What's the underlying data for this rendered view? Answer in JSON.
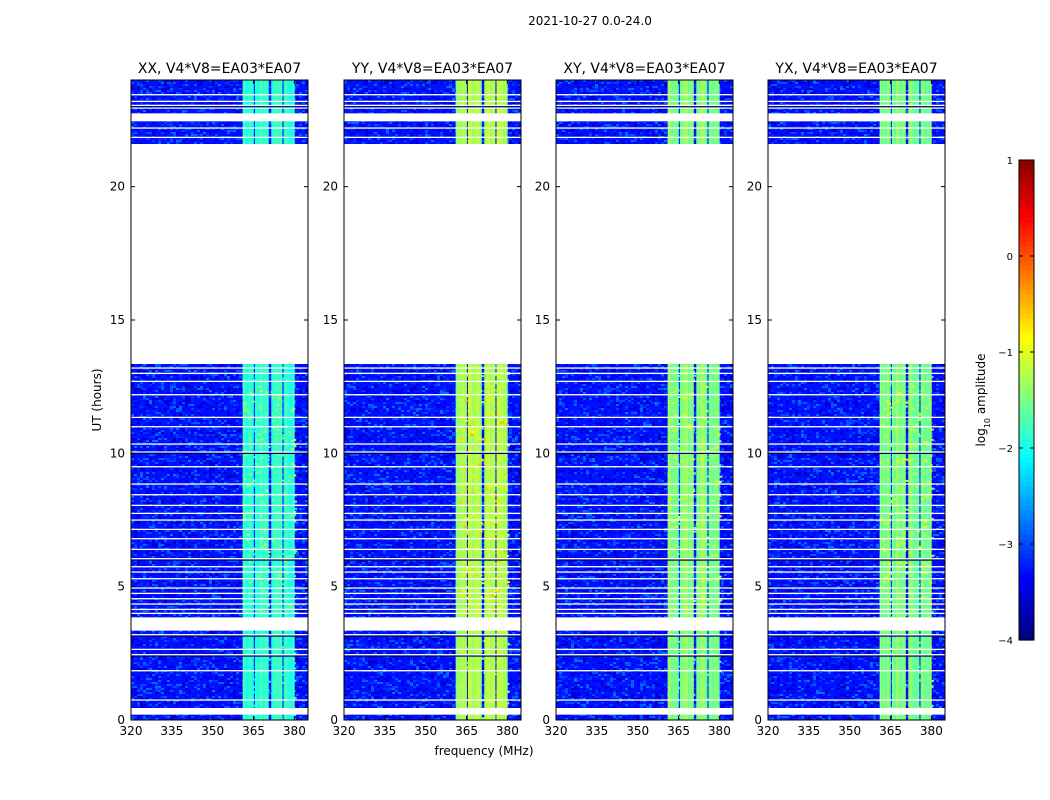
{
  "suptitle": "2021-10-27 0.0-24.0",
  "chart_data": {
    "type": "heatmap",
    "xlabel": "frequency (MHz)",
    "ylabel": "UT (hours)",
    "xlim": [
      320,
      385
    ],
    "ylim": [
      0,
      24
    ],
    "xticks": [
      320,
      335,
      350,
      365,
      380
    ],
    "yticks": [
      0,
      5,
      10,
      15,
      20
    ],
    "colorbar": {
      "label_prefix": "log",
      "label_sub": "10",
      "label_suffix": " amplitude",
      "range": [
        -4,
        1
      ],
      "ticks": [
        1,
        0,
        -1,
        -2,
        -3,
        -4
      ],
      "tick_labels": [
        "1",
        "0",
        "−1",
        "−2",
        "−3",
        "−4"
      ]
    },
    "panels": [
      {
        "title": "XX, V4*V8=EA03*EA07",
        "polarization": "XX",
        "bright_channel_level": -1.9,
        "peak_level": -1.3
      },
      {
        "title": "YY, V4*V8=EA03*EA07",
        "polarization": "YY",
        "bright_channel_level": -1.3,
        "peak_level": -0.6
      },
      {
        "title": "XY, V4*V8=EA03*EA07",
        "polarization": "XY",
        "bright_channel_level": -1.5,
        "peak_level": -1.0
      },
      {
        "title": "YX, V4*V8=EA03*EA07",
        "polarization": "YX",
        "bright_channel_level": -1.5,
        "peak_level": -1.0
      }
    ],
    "background_level": -3.3,
    "bright_band_mhz": [
      361,
      380
    ],
    "band_gaps_mhz": [
      [
        365,
        365.5
      ],
      [
        370.5,
        371.2
      ],
      [
        375.5,
        376
      ],
      [
        380,
        385
      ]
    ],
    "flagged_ut_ranges": [
      [
        0.2,
        0.45
      ],
      [
        3.35,
        3.85
      ],
      [
        13.35,
        21.6
      ],
      [
        22.45,
        22.75
      ]
    ],
    "flagged_ut_lines": [
      0.75,
      1.85,
      2.45,
      2.65,
      3.2,
      4.0,
      4.15,
      4.35,
      4.55,
      4.75,
      4.95,
      5.3,
      5.55,
      5.75,
      6.05,
      6.4,
      6.8,
      7.15,
      7.5,
      7.75,
      8.05,
      8.45,
      8.85,
      9.5,
      10.05,
      10.35,
      11.0,
      11.35,
      12.2,
      12.7,
      13.0,
      13.2,
      21.85,
      22.2,
      22.95,
      23.05,
      23.2,
      23.45
    ]
  }
}
